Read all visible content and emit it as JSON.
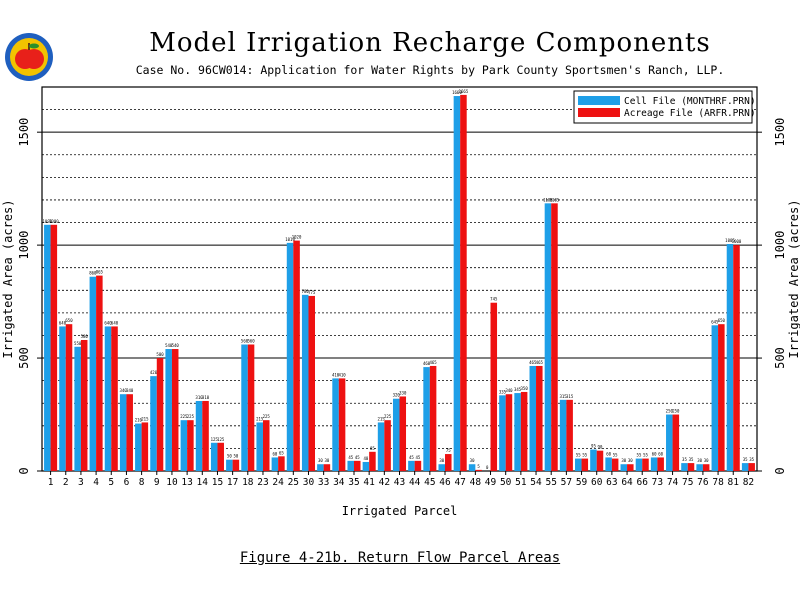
{
  "header": {
    "title": "Model Irrigation Recharge Components",
    "subtitle": "Case No. 96CW014: Application for Water Rights by Park County Sportsmen's Ranch, LLP."
  },
  "figure_caption": "Figure 4-21b.  Return Flow Parcel Areas",
  "logo": {
    "icon": "apple-seal-icon",
    "colors": [
      "#1f5fbf",
      "#f2c200",
      "#e8201a",
      "#2a8f2a"
    ]
  },
  "colors": {
    "cell": "#1e9fe8",
    "acreage": "#ee1111",
    "background": "#ffffff",
    "ink": "#000000"
  },
  "chart_data": {
    "type": "bar",
    "xlabel": "Irrigated Parcel",
    "ylabel": "Irrigated Area (acres)",
    "ylim": [
      0,
      1700
    ],
    "yticks": [
      0,
      500,
      1000,
      1500
    ],
    "grid": true,
    "legend_position": "top-right",
    "categories": [
      "1",
      "2",
      "3",
      "4",
      "5",
      "6",
      "8",
      "9",
      "10",
      "13",
      "14",
      "15",
      "17",
      "18",
      "23",
      "24",
      "25",
      "30",
      "33",
      "34",
      "35",
      "41",
      "42",
      "43",
      "44",
      "45",
      "46",
      "47",
      "48",
      "49",
      "50",
      "51",
      "54",
      "55",
      "57",
      "59",
      "60",
      "63",
      "64",
      "66",
      "73",
      "74",
      "75",
      "76",
      "78",
      "81",
      "82"
    ],
    "series": [
      {
        "name": "Cell File (MONTHRF.PRN)",
        "color": "#1e9fe8",
        "values": [
          1090,
          640,
          550,
          860,
          640,
          340,
          210,
          420,
          540,
          225,
          310,
          125,
          50,
          560,
          215,
          60,
          1010,
          780,
          30,
          410,
          45,
          40,
          215,
          320,
          45,
          460,
          30,
          1660,
          30,
          0,
          335,
          345,
          465,
          1185,
          315,
          55,
          95,
          60,
          30,
          55,
          60,
          250,
          35,
          30,
          645,
          1005,
          35
        ]
      },
      {
        "name": "Acreage File (ARFR.PRN)",
        "color": "#ee1111",
        "values": [
          1090,
          650,
          580,
          865,
          640,
          340,
          215,
          500,
          540,
          225,
          310,
          125,
          50,
          560,
          225,
          65,
          1020,
          775,
          30,
          410,
          45,
          85,
          225,
          330,
          45,
          465,
          75,
          1665,
          5,
          745,
          340,
          350,
          465,
          1185,
          315,
          55,
          90,
          55,
          30,
          55,
          60,
          250,
          35,
          30,
          650,
          1000,
          35
        ]
      }
    ]
  }
}
